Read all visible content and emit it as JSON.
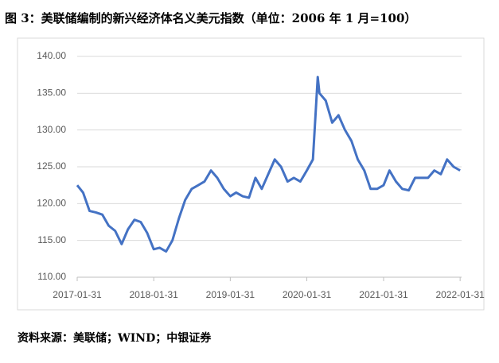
{
  "chart_data": {
    "type": "line",
    "title": "图 3：美联储编制的新兴经济体名义美元指数（单位：2006 年 1 月=100）",
    "source": "资料来源：美联储；WIND；中银证券",
    "x": [
      "2017-01-31",
      "2017-02-28",
      "2017-03-31",
      "2017-04-30",
      "2017-05-31",
      "2017-06-30",
      "2017-07-31",
      "2017-08-31",
      "2017-09-30",
      "2017-10-31",
      "2017-11-30",
      "2017-12-31",
      "2018-01-31",
      "2018-02-28",
      "2018-03-31",
      "2018-04-30",
      "2018-05-31",
      "2018-06-30",
      "2018-07-31",
      "2018-08-31",
      "2018-09-30",
      "2018-10-31",
      "2018-11-30",
      "2018-12-31",
      "2019-01-31",
      "2019-02-28",
      "2019-03-31",
      "2019-04-30",
      "2019-05-31",
      "2019-06-30",
      "2019-07-31",
      "2019-08-31",
      "2019-09-30",
      "2019-10-31",
      "2019-11-30",
      "2019-12-31",
      "2020-01-31",
      "2020-02-29",
      "2020-03-23",
      "2020-03-31",
      "2020-04-30",
      "2020-05-31",
      "2020-06-30",
      "2020-07-31",
      "2020-08-31",
      "2020-09-30",
      "2020-10-31",
      "2020-11-30",
      "2020-12-31",
      "2021-01-31",
      "2021-02-28",
      "2021-03-31",
      "2021-04-30",
      "2021-05-31",
      "2021-06-30",
      "2021-07-31",
      "2021-08-31",
      "2021-09-30",
      "2021-10-31",
      "2021-11-30",
      "2021-12-31",
      "2022-01-31"
    ],
    "series": [
      {
        "name": "新兴经济体名义美元指数",
        "color": "#4472c4",
        "values": [
          122.5,
          121.5,
          119.0,
          118.8,
          118.5,
          117.0,
          116.3,
          114.5,
          116.5,
          117.8,
          117.5,
          116.0,
          113.8,
          114.0,
          113.5,
          115.0,
          118.0,
          120.5,
          122.0,
          122.5,
          123.0,
          124.5,
          123.5,
          122.0,
          121.0,
          121.5,
          121.0,
          120.8,
          123.5,
          122.0,
          124.0,
          126.0,
          125.0,
          123.0,
          123.5,
          123.0,
          124.5,
          126.0,
          137.2,
          135.0,
          134.0,
          131.0,
          132.0,
          130.0,
          128.5,
          126.0,
          124.5,
          122.0,
          122.0,
          122.5,
          124.5,
          123.0,
          122.0,
          121.8,
          123.5,
          123.5,
          123.5,
          124.5,
          124.0,
          126.0,
          125.0,
          124.5
        ]
      }
    ],
    "xlim": [
      "2017-01-31",
      "2022-02-07"
    ],
    "xticks": [
      "2017-01-31",
      "2018-01-31",
      "2019-01-31",
      "2020-01-31",
      "2021-01-31",
      "2022-01-31"
    ],
    "ylim": [
      110,
      140
    ],
    "yticks": [
      {
        "value": 110,
        "label": "110.00"
      },
      {
        "value": 115,
        "label": "115.00"
      },
      {
        "value": 120,
        "label": "120.00"
      },
      {
        "value": 125,
        "label": "125.00"
      },
      {
        "value": 130,
        "label": "130.00"
      },
      {
        "value": 135,
        "label": "135.00"
      },
      {
        "value": 140,
        "label": "140.00"
      }
    ],
    "grid": true
  }
}
